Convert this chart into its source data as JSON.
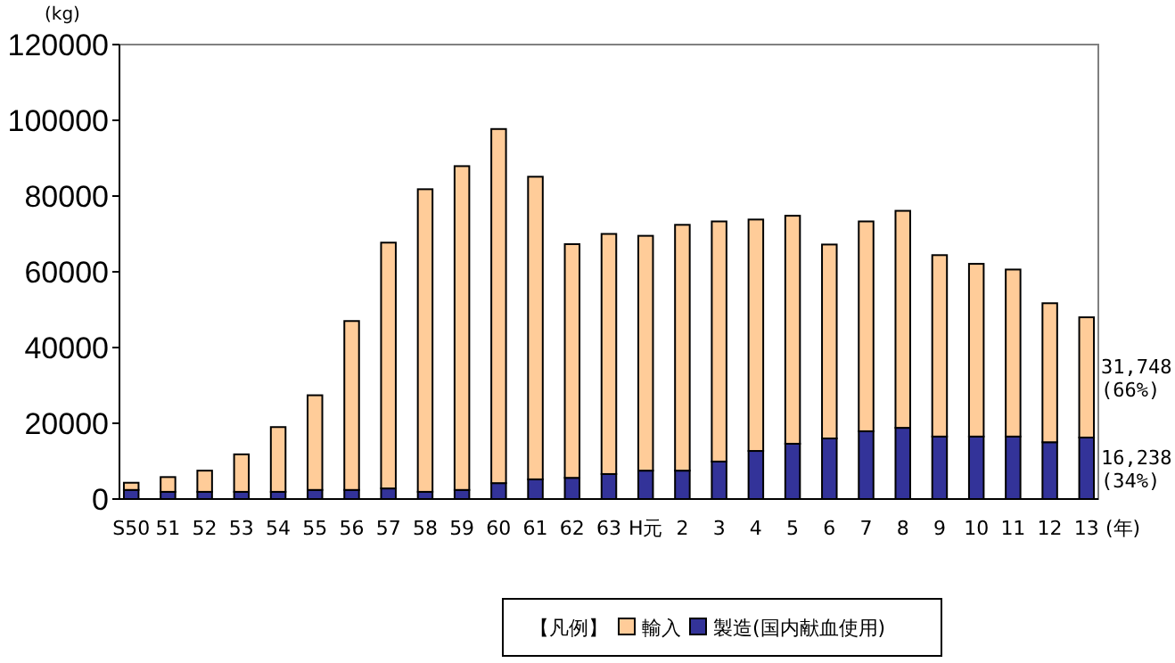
{
  "chart_data": {
    "type": "bar",
    "stacked": true,
    "ylabel": "(kg)",
    "xlabel": "(年)",
    "legend_title": "【凡例】",
    "legend": "bottom",
    "grid": false,
    "categories": [
      "S50",
      "51",
      "52",
      "53",
      "54",
      "55",
      "56",
      "57",
      "58",
      "59",
      "60",
      "61",
      "62",
      "63",
      "H元",
      "2",
      "3",
      "4",
      "5",
      "6",
      "7",
      "8",
      "9",
      "10",
      "11",
      "12",
      "13"
    ],
    "ylim": [
      0,
      120000
    ],
    "yticks": [
      0,
      20000,
      40000,
      60000,
      80000,
      100000,
      120000
    ],
    "annotations": [
      {
        "text": "31,748\n(66%)",
        "x": "13",
        "y": 32000
      },
      {
        "text": "16,238\n(34%)",
        "x": "13",
        "y": 8000
      }
    ],
    "series": [
      {
        "name": "製造(国内献血使用)",
        "color": "#333399",
        "values": [
          2400,
          1900,
          1900,
          1900,
          1900,
          2400,
          2400,
          2800,
          1900,
          2400,
          4200,
          5200,
          5600,
          6600,
          7500,
          7500,
          9900,
          12700,
          14600,
          16000,
          17900,
          18800,
          16500,
          16500,
          16500,
          15000,
          16238
        ]
      },
      {
        "name": "輸入",
        "color": "#ffcc99",
        "values": [
          1900,
          3900,
          5600,
          9900,
          17100,
          25000,
          44600,
          64900,
          79900,
          85500,
          93500,
          79900,
          61700,
          63400,
          62000,
          64900,
          63400,
          61100,
          60200,
          51200,
          55400,
          57300,
          47900,
          45600,
          44100,
          36700,
          31748
        ]
      }
    ]
  }
}
